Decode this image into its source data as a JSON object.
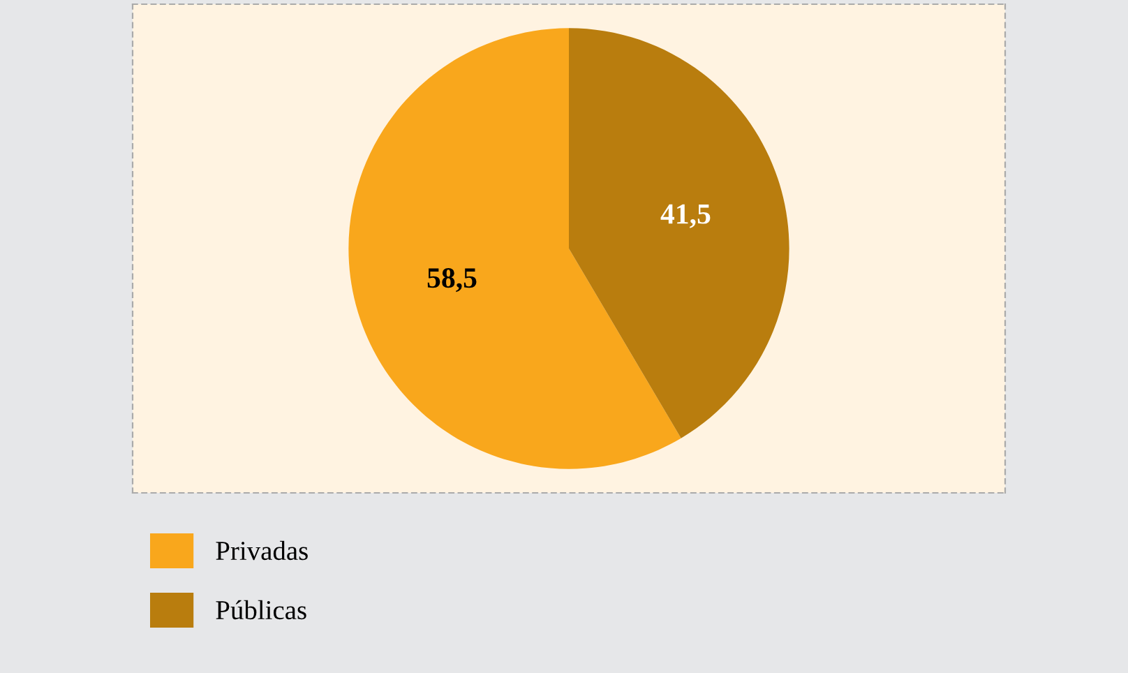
{
  "chart_data": {
    "type": "pie",
    "categories": [
      "Privadas",
      "Públicas"
    ],
    "values": [
      58.5,
      41.5
    ],
    "value_labels": [
      "58,5",
      "41,5"
    ],
    "colors": [
      "#f9a71c",
      "#b97d0e"
    ],
    "legend": "bottom left"
  }
}
